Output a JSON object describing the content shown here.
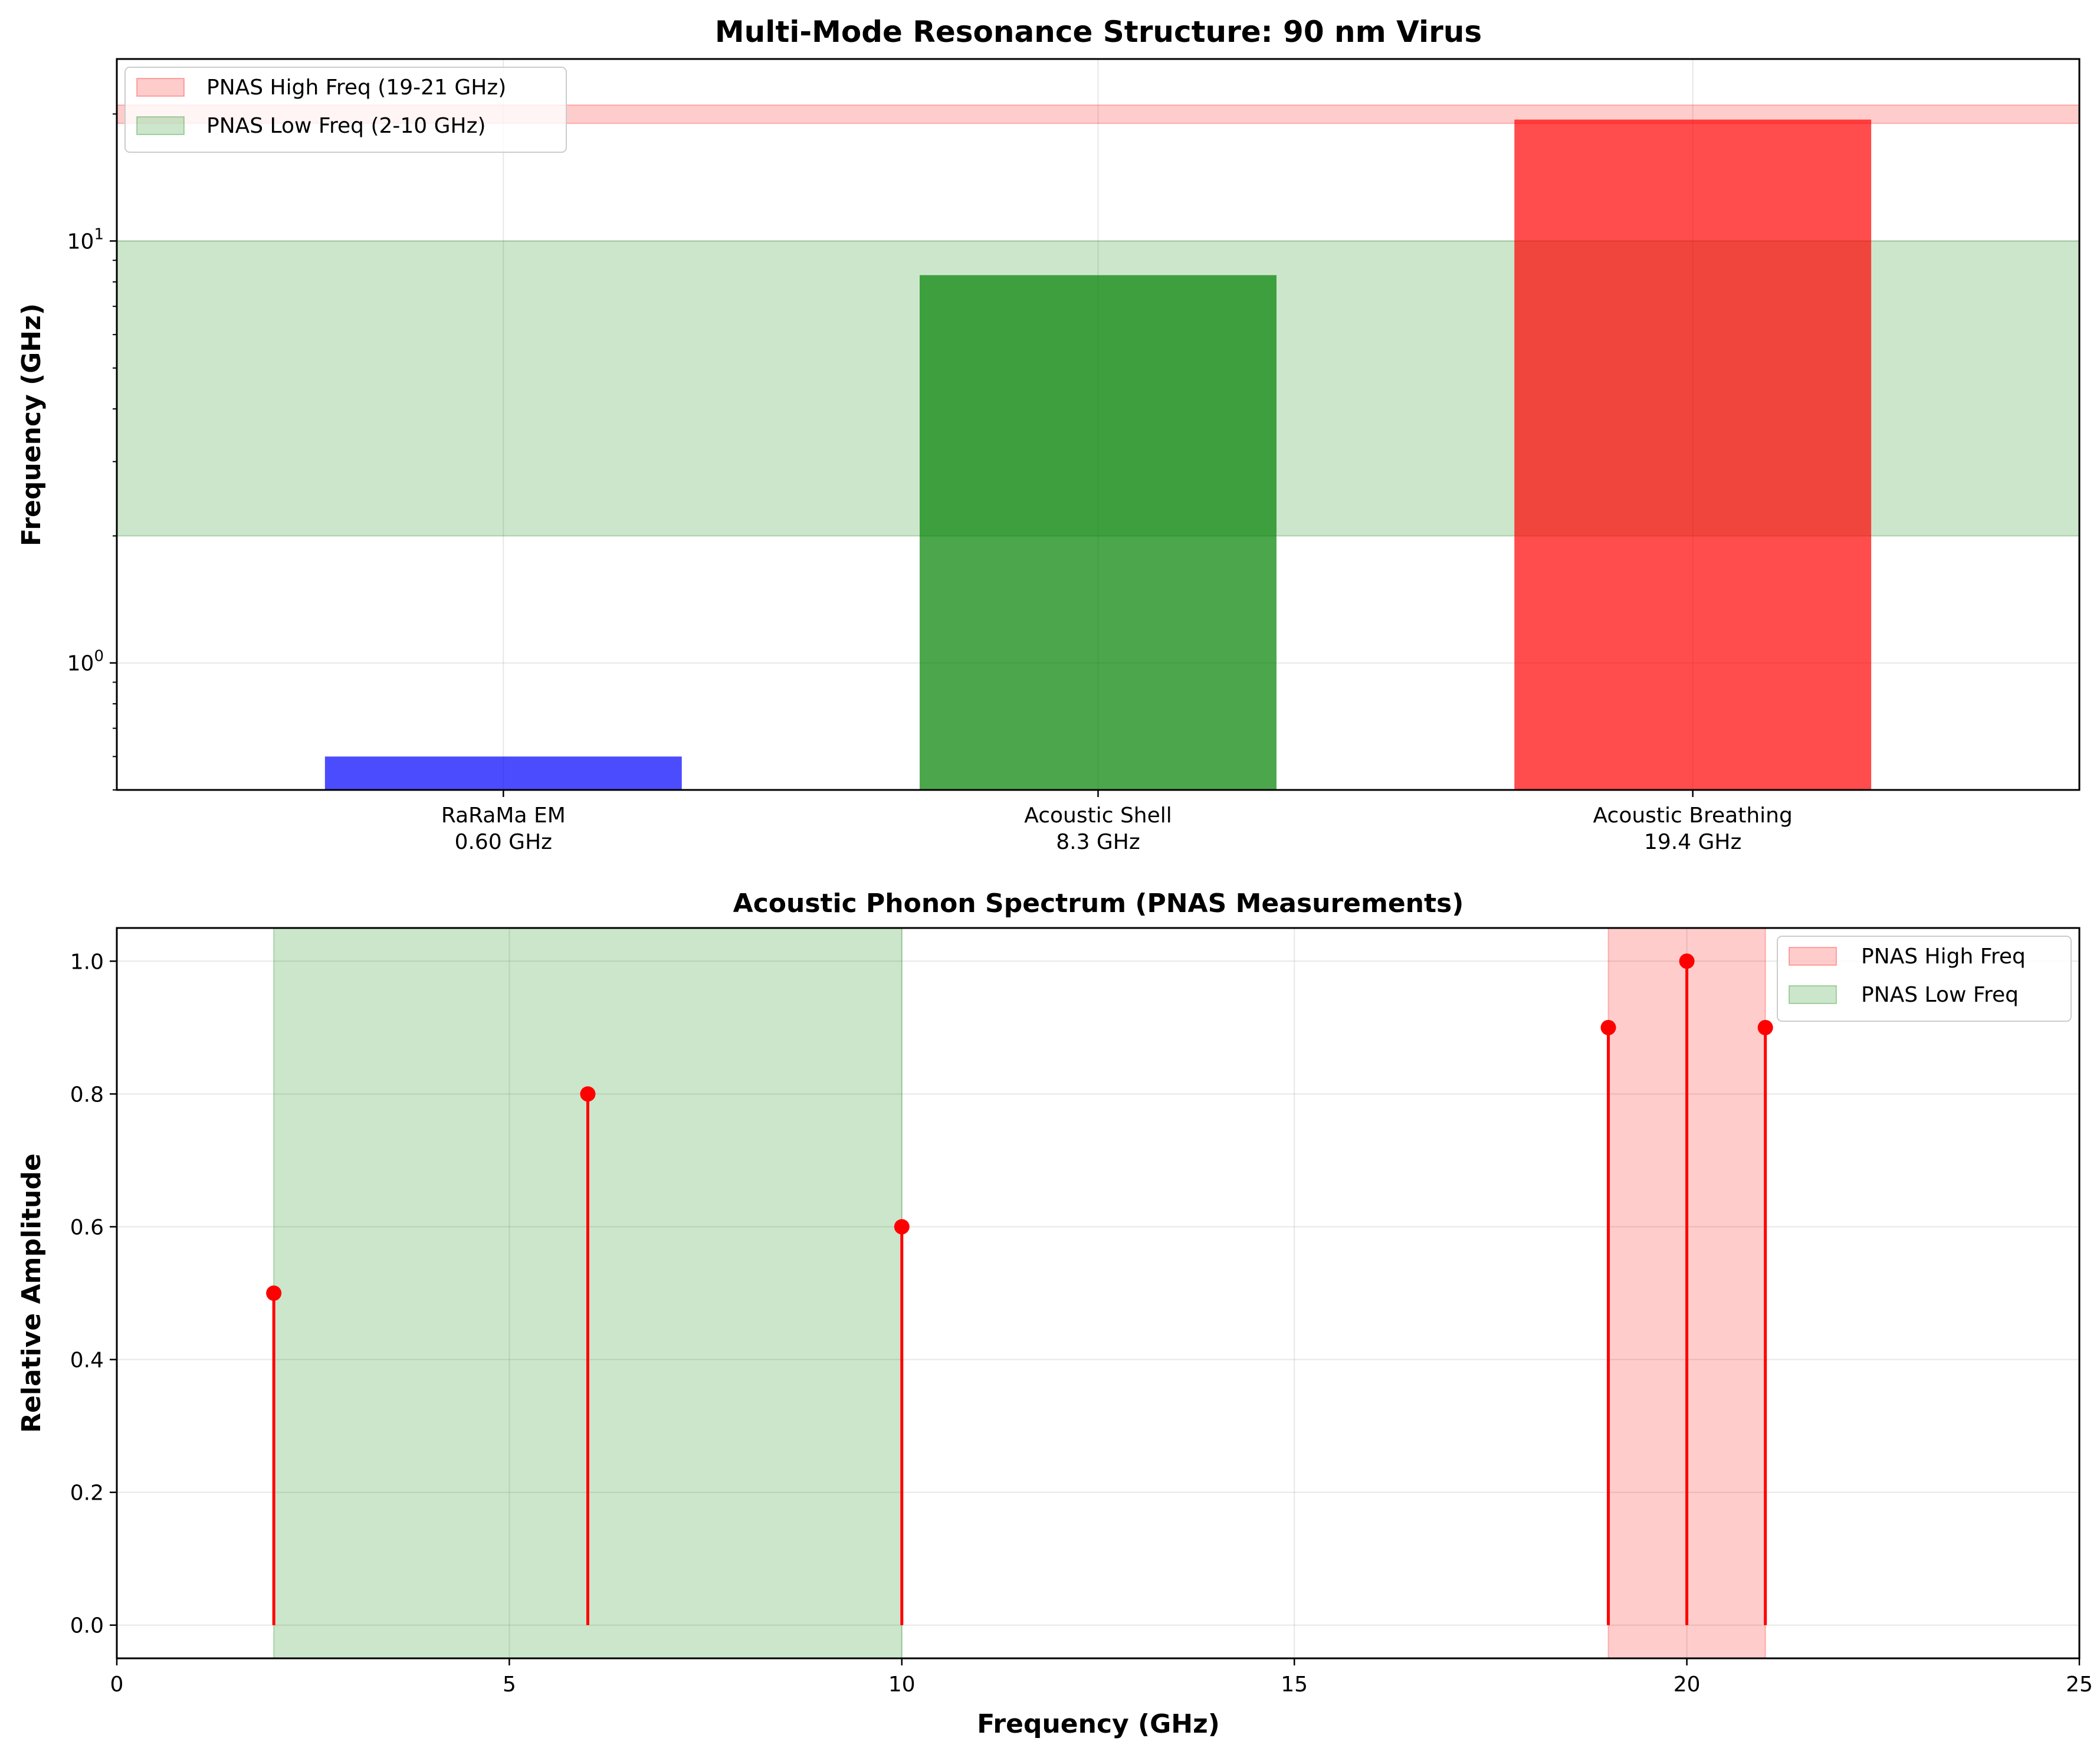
{
  "colors": {
    "rarama": "#0000ff",
    "shell": "#008000",
    "breathing": "#ff0000",
    "high_band": "#ff0000",
    "low_band": "#008000",
    "stem": "#ff0000",
    "grid": "#b0b0b0"
  },
  "chart_data": [
    {
      "type": "bar",
      "title": "Multi-Mode Resonance Structure: 90 nm Virus",
      "xlabel": "",
      "ylabel": "Frequency (GHz)",
      "yscale": "log",
      "ylim": [
        0.5,
        27
      ],
      "yticks": [
        {
          "value": 1,
          "label": "10",
          "exp": "0"
        },
        {
          "value": 10,
          "label": "10",
          "exp": "1"
        }
      ],
      "grid": true,
      "legend_position": "top-left",
      "categories": [
        {
          "name": "RaRaMa EM",
          "value_label": "0.60 GHz"
        },
        {
          "name": "Acoustic Shell",
          "value_label": "8.3 GHz"
        },
        {
          "name": "Acoustic Breathing",
          "value_label": "19.4 GHz"
        }
      ],
      "values": [
        0.6,
        8.3,
        19.4
      ],
      "bar_colors": [
        "#0000ff",
        "#008000",
        "#ff0000"
      ],
      "bands": [
        {
          "name": "PNAS High Freq (19-21 GHz)",
          "from": 19,
          "to": 21,
          "color": "#ff0000"
        },
        {
          "name": "PNAS Low Freq (2-10 GHz)",
          "from": 2,
          "to": 10,
          "color": "#008000"
        }
      ]
    },
    {
      "type": "stem",
      "title": "Acoustic Phonon Spectrum (PNAS Measurements)",
      "xlabel": "Frequency (GHz)",
      "ylabel": "Relative Amplitude",
      "xlim": [
        0,
        25
      ],
      "ylim": [
        -0.05,
        1.05
      ],
      "xticks": [
        "0",
        "5",
        "10",
        "15",
        "20",
        "25"
      ],
      "yticks": [
        "0.0",
        "0.2",
        "0.4",
        "0.6",
        "0.8",
        "1.0"
      ],
      "grid": true,
      "legend_position": "top-right",
      "x": [
        2,
        6,
        10,
        19,
        20,
        21
      ],
      "y": [
        0.5,
        0.8,
        0.6,
        0.9,
        1.0,
        0.9
      ],
      "bands": [
        {
          "name": "PNAS High Freq",
          "from": 19,
          "to": 21,
          "color": "#ff0000"
        },
        {
          "name": "PNAS Low Freq",
          "from": 2,
          "to": 10,
          "color": "#008000"
        }
      ]
    }
  ]
}
